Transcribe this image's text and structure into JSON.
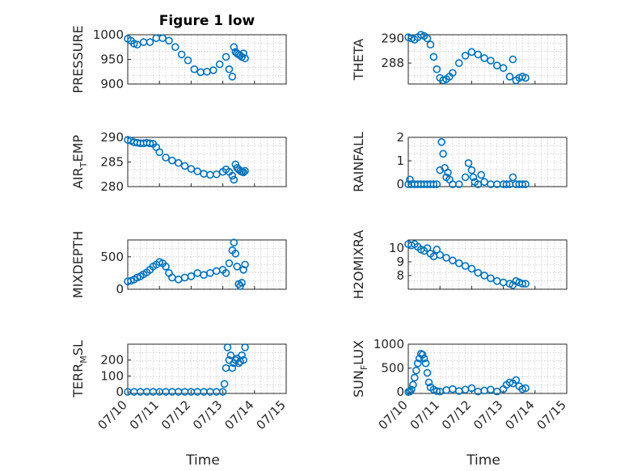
{
  "figure_title": "Figure 1 low",
  "xlabel": "Time",
  "x_ticks": [
    "07/10",
    "07/11",
    "07/12",
    "07/13",
    "07/14",
    "07/15"
  ],
  "marker_color": "#0072bd",
  "chart_data": [
    {
      "type": "scatter",
      "title": "Figure 1 low",
      "ylabel": "PRESSURE",
      "ylabel_sub": "",
      "xlim": [
        0,
        5
      ],
      "ylim": [
        900,
        1000
      ],
      "yticks": [
        1000,
        950,
        900
      ],
      "x": [
        0,
        0.1,
        0.2,
        0.3,
        0.5,
        0.7,
        0.9,
        1.1,
        1.3,
        1.5,
        1.7,
        1.9,
        2.1,
        2.3,
        2.5,
        2.7,
        2.9,
        3.1,
        3.2,
        3.3,
        3.35,
        3.4,
        3.45,
        3.5,
        3.55,
        3.6,
        3.65,
        3.7
      ],
      "values": [
        992,
        988,
        982,
        980,
        985,
        985,
        993,
        993,
        988,
        975,
        960,
        948,
        930,
        924,
        925,
        928,
        940,
        955,
        930,
        915,
        975,
        965,
        962,
        960,
        958,
        955,
        962,
        952
      ]
    },
    {
      "type": "scatter",
      "ylabel": "THETA",
      "ylabel_sub": "",
      "xlim": [
        0,
        5
      ],
      "ylim": [
        286.3,
        290.3
      ],
      "yticks": [
        290,
        288
      ],
      "x": [
        0,
        0.1,
        0.2,
        0.3,
        0.4,
        0.5,
        0.6,
        0.7,
        0.8,
        0.9,
        1.0,
        1.1,
        1.2,
        1.3,
        1.4,
        1.6,
        1.8,
        2.0,
        2.2,
        2.4,
        2.6,
        2.8,
        3.0,
        3.2,
        3.3,
        3.4,
        3.5,
        3.6,
        3.7
      ],
      "values": [
        290.1,
        290.0,
        289.9,
        290.1,
        290.3,
        290.2,
        290.0,
        289.5,
        288.5,
        287.5,
        286.8,
        286.6,
        286.7,
        286.9,
        287.2,
        288.0,
        288.6,
        288.9,
        288.7,
        288.4,
        288.2,
        287.8,
        287.6,
        286.9,
        288.3,
        286.6,
        286.8,
        286.9,
        286.8
      ]
    },
    {
      "type": "scatter",
      "ylabel": "AIR",
      "ylabel_sub": "T",
      "ylabel_after": "EMP",
      "xlim": [
        0,
        5
      ],
      "ylim": [
        280,
        290
      ],
      "yticks": [
        290,
        285,
        280
      ],
      "x": [
        0,
        0.1,
        0.2,
        0.3,
        0.4,
        0.5,
        0.6,
        0.7,
        0.8,
        0.9,
        1.0,
        1.2,
        1.4,
        1.6,
        1.8,
        2.0,
        2.2,
        2.4,
        2.6,
        2.8,
        3.0,
        3.1,
        3.2,
        3.3,
        3.35,
        3.4,
        3.45,
        3.5,
        3.55,
        3.6,
        3.65,
        3.7
      ],
      "values": [
        289.5,
        289.3,
        289,
        288.9,
        288.8,
        288.8,
        288.9,
        288.8,
        288.7,
        288,
        287,
        285.9,
        285.3,
        284.8,
        284.2,
        283.6,
        283.1,
        282.6,
        282.4,
        282.5,
        283,
        283.5,
        283.0,
        282.2,
        281.4,
        284.5,
        283.8,
        283.5,
        283.2,
        283.0,
        282.9,
        283.2
      ]
    },
    {
      "type": "scatter",
      "ylabel": "RAINFALL",
      "ylabel_sub": "",
      "xlim": [
        0,
        5
      ],
      "ylim": [
        -0.1,
        2
      ],
      "yticks": [
        2,
        1,
        0
      ],
      "x": [
        0,
        0.05,
        0.1,
        0.2,
        0.3,
        0.4,
        0.5,
        0.6,
        0.7,
        0.8,
        0.9,
        1.0,
        1.05,
        1.1,
        1.15,
        1.2,
        1.25,
        1.3,
        1.4,
        1.6,
        1.8,
        1.9,
        2.0,
        2.05,
        2.1,
        2.2,
        2.3,
        2.4,
        2.6,
        2.8,
        3.0,
        3.1,
        3.2,
        3.3,
        3.4,
        3.5,
        3.6,
        3.7
      ],
      "values": [
        0,
        0.2,
        0,
        0,
        0,
        0,
        0,
        0,
        0,
        0,
        0,
        0.6,
        1.8,
        1.3,
        0.7,
        0.3,
        0.5,
        0.2,
        0,
        0,
        0.3,
        0.9,
        0.6,
        0.3,
        0.1,
        0,
        0.4,
        0.1,
        0,
        0,
        0,
        0,
        0,
        0.3,
        0,
        0,
        0,
        0
      ]
    },
    {
      "type": "scatter",
      "ylabel": "MIXDEPTH",
      "ylabel_sub": "",
      "xlim": [
        0,
        5
      ],
      "ylim": [
        0,
        760
      ],
      "yticks": [
        500,
        0
      ],
      "x": [
        0,
        0.1,
        0.2,
        0.3,
        0.4,
        0.5,
        0.6,
        0.7,
        0.8,
        0.9,
        1.0,
        1.1,
        1.2,
        1.3,
        1.4,
        1.6,
        1.8,
        2.0,
        2.2,
        2.4,
        2.6,
        2.8,
        3.0,
        3.1,
        3.2,
        3.3,
        3.35,
        3.4,
        3.45,
        3.5,
        3.55,
        3.6,
        3.65,
        3.7
      ],
      "values": [
        120,
        130,
        150,
        180,
        200,
        230,
        260,
        300,
        350,
        380,
        420,
        400,
        350,
        250,
        180,
        150,
        180,
        200,
        250,
        220,
        250,
        280,
        300,
        250,
        400,
        600,
        720,
        550,
        350,
        80,
        50,
        100,
        300,
        380
      ]
    },
    {
      "type": "scatter",
      "ylabel": "H2OMIXRA",
      "ylabel_sub": "",
      "xlim": [
        0,
        5
      ],
      "ylim": [
        7,
        10.6
      ],
      "yticks": [
        10,
        9,
        8
      ],
      "x": [
        0,
        0.1,
        0.2,
        0.3,
        0.4,
        0.5,
        0.6,
        0.7,
        0.8,
        0.9,
        1.0,
        1.2,
        1.4,
        1.6,
        1.8,
        2.0,
        2.2,
        2.4,
        2.6,
        2.8,
        3.0,
        3.2,
        3.3,
        3.4,
        3.5,
        3.6,
        3.7
      ],
      "values": [
        10.3,
        10.2,
        10.3,
        10.1,
        9.9,
        9.8,
        10.0,
        9.6,
        9.4,
        9.9,
        9.5,
        9.3,
        9.1,
        8.9,
        8.7,
        8.5,
        8.2,
        8.0,
        7.8,
        7.6,
        7.5,
        7.4,
        7.3,
        7.6,
        7.5,
        7.4,
        7.4
      ]
    },
    {
      "type": "scatter",
      "ylabel": "TERR",
      "ylabel_sub": "M",
      "ylabel_after": "SL",
      "xlim": [
        0,
        5
      ],
      "ylim": [
        -10,
        300
      ],
      "yticks": [
        200,
        100,
        0
      ],
      "x": [
        0,
        0.2,
        0.4,
        0.6,
        0.8,
        1.0,
        1.2,
        1.4,
        1.6,
        1.8,
        2.0,
        2.2,
        2.4,
        2.6,
        2.8,
        3.0,
        3.05,
        3.1,
        3.15,
        3.2,
        3.25,
        3.3,
        3.35,
        3.4,
        3.45,
        3.5,
        3.55,
        3.6,
        3.65,
        3.7
      ],
      "values": [
        0,
        0,
        0,
        0,
        0,
        0,
        0,
        0,
        0,
        0,
        0,
        0,
        0,
        0,
        0,
        0,
        50,
        150,
        280,
        200,
        230,
        150,
        180,
        200,
        210,
        180,
        190,
        230,
        200,
        280
      ]
    },
    {
      "type": "scatter",
      "ylabel": "SUN",
      "ylabel_sub": "F",
      "ylabel_after": "LUX",
      "xlim": [
        0,
        5
      ],
      "ylim": [
        -30,
        1000
      ],
      "yticks": [
        1000,
        500,
        0
      ],
      "x": [
        0,
        0.05,
        0.1,
        0.15,
        0.2,
        0.25,
        0.3,
        0.35,
        0.4,
        0.45,
        0.5,
        0.55,
        0.6,
        0.65,
        0.7,
        0.8,
        0.9,
        1.0,
        1.2,
        1.4,
        1.6,
        1.8,
        2.0,
        2.2,
        2.4,
        2.6,
        2.8,
        3.0,
        3.1,
        3.2,
        3.3,
        3.4,
        3.5,
        3.6,
        3.7
      ],
      "values": [
        0,
        10,
        50,
        150,
        300,
        450,
        600,
        700,
        800,
        780,
        700,
        600,
        400,
        200,
        100,
        50,
        20,
        10,
        40,
        60,
        20,
        50,
        80,
        10,
        30,
        50,
        10,
        60,
        150,
        200,
        180,
        250,
        120,
        60,
        80
      ]
    }
  ]
}
